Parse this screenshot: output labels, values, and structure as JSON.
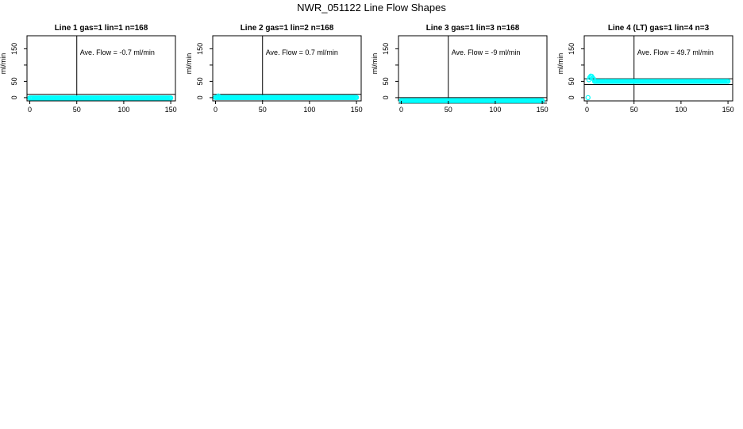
{
  "page": {
    "title": "NWR_051122  Line Flow Shapes"
  },
  "colors": {
    "points": "#00ffff",
    "axes": "#000000",
    "background": "#ffffff"
  },
  "chart_data": [
    {
      "type": "scatter",
      "title": "Line 1 gas=1 lin=1 n=168",
      "ylabel": "ml/min",
      "xlabel": "",
      "xlim": [
        -3,
        155
      ],
      "ylim": [
        -10,
        190
      ],
      "xticks": [
        0,
        50,
        100,
        150
      ],
      "yticks": [
        0,
        50,
        100,
        150
      ],
      "ytick_labels": [
        "0",
        "50",
        "",
        "150"
      ],
      "annotation": "Ave. Flow =  -0.7  ml/min",
      "vline": 50,
      "hlines": [
        10,
        -10
      ],
      "grid": false,
      "series": [
        {
          "points": [
            {
              "x_from": 0,
              "x_to": 150,
              "y": -1
            }
          ]
        }
      ]
    },
    {
      "type": "scatter",
      "title": "Line 2 gas=1 lin=2 n=168",
      "ylabel": "ml/min",
      "xlabel": "",
      "xlim": [
        -3,
        155
      ],
      "ylim": [
        -10,
        190
      ],
      "xticks": [
        0,
        50,
        100,
        150
      ],
      "yticks": [
        0,
        50,
        100,
        150
      ],
      "ytick_labels": [
        "0",
        "50",
        "",
        "150"
      ],
      "annotation": "Ave. Flow =  0.7  ml/min",
      "vline": 50,
      "hlines": [
        10,
        -10
      ],
      "grid": false,
      "series": [
        {
          "points": [
            {
              "x": 3,
              "y": 5
            },
            {
              "x_from": 0,
              "x_to": 150,
              "y": 0.5
            }
          ]
        }
      ]
    },
    {
      "type": "scatter",
      "title": "Line 3 gas=1 lin=3 n=168",
      "ylabel": "ml/min",
      "xlabel": "",
      "xlim": [
        -3,
        155
      ],
      "ylim": [
        -10,
        190
      ],
      "xticks": [
        0,
        50,
        100,
        150
      ],
      "yticks": [
        0,
        50,
        100,
        150
      ],
      "ytick_labels": [
        "0",
        "50",
        "",
        "150"
      ],
      "annotation": "Ave. Flow =  -9  ml/min",
      "vline": 50,
      "hlines": [
        0,
        -17
      ],
      "grid": false,
      "series": [
        {
          "points": [
            {
              "x_from": 0,
              "x_to": 150,
              "y": -9
            }
          ]
        }
      ]
    },
    {
      "type": "scatter",
      "title": "Line 4 (LT) gas=1 lin=4 n=3",
      "ylabel": "ml/min",
      "xlabel": "",
      "xlim": [
        -3,
        155
      ],
      "ylim": [
        -10,
        190
      ],
      "xticks": [
        0,
        50,
        100,
        150
      ],
      "yticks": [
        0,
        50,
        100,
        150
      ],
      "ytick_labels": [
        "0",
        "50",
        "",
        "150"
      ],
      "annotation": "Ave. Flow =  49.7  ml/min",
      "vline": 50,
      "hlines": [
        58,
        40
      ],
      "grid": false,
      "series": [
        {
          "points": [
            {
              "x": 1,
              "y": 0
            },
            {
              "x": 2,
              "y": 55
            },
            {
              "x": 3,
              "y": 62
            },
            {
              "x": 4,
              "y": 66
            },
            {
              "x": 5,
              "y": 65
            },
            {
              "x": 6,
              "y": 60
            },
            {
              "x": 7,
              "y": 57
            },
            {
              "x_from": 8,
              "x_to": 150,
              "y": 50
            }
          ]
        }
      ]
    }
  ]
}
